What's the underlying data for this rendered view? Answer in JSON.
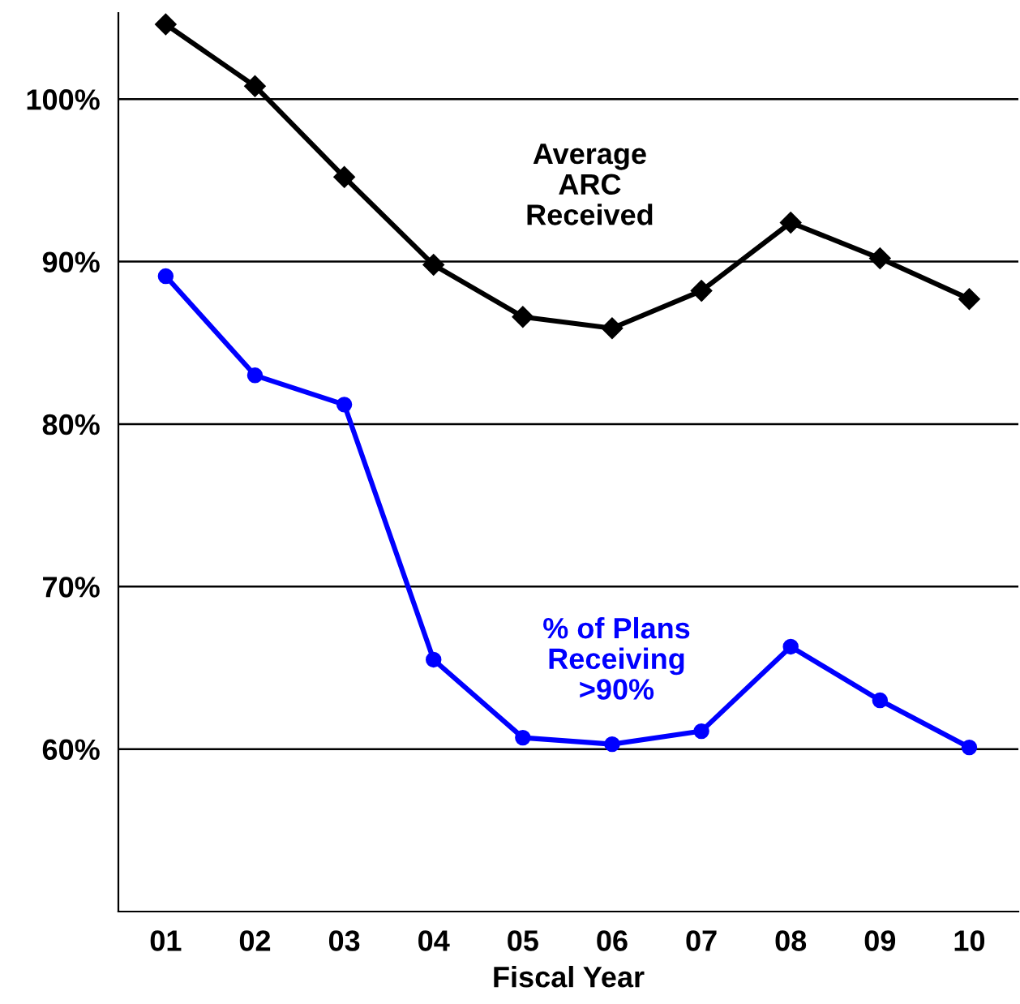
{
  "chart_data": {
    "type": "line",
    "xlabel": "Fiscal Year",
    "categories": [
      "01",
      "02",
      "03",
      "04",
      "05",
      "06",
      "07",
      "08",
      "09",
      "10"
    ],
    "series": [
      {
        "name": "Average\nARC\nReceived",
        "color": "#000000",
        "marker": "diamond",
        "values": [
          104.6,
          100.8,
          95.2,
          89.8,
          86.6,
          85.9,
          88.2,
          92.4,
          90.2,
          87.7
        ]
      },
      {
        "name": "% of Plans\nReceiving\n>90%",
        "color": "#0000ff",
        "marker": "circle",
        "values": [
          89.1,
          83.0,
          81.2,
          65.5,
          60.7,
          60.3,
          61.1,
          66.3,
          63.0,
          60.1
        ]
      }
    ],
    "ylim": [
      50,
      105.3
    ],
    "yticks": [
      {
        "value": 60,
        "label": "60%"
      },
      {
        "value": 70,
        "label": "70%"
      },
      {
        "value": 80,
        "label": "80%"
      },
      {
        "value": 90,
        "label": "90%"
      },
      {
        "value": 100,
        "label": "100%"
      }
    ],
    "grid": "y",
    "line_style": "solid"
  }
}
